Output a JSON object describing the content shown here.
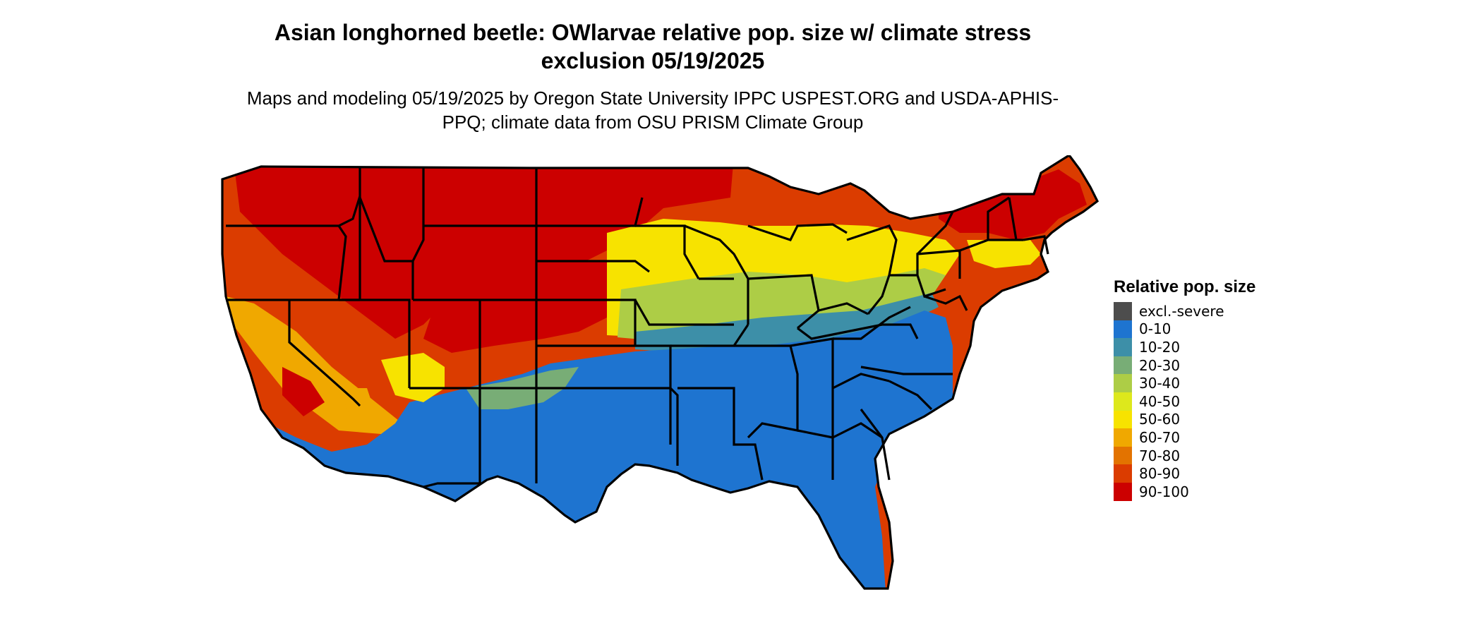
{
  "title": "Asian longhorned beetle: OWlarvae relative pop. size w/ climate stress exclusion 05/19/2025",
  "subtitle": "Maps and modeling 05/19/2025 by Oregon State University IPPC USPEST.ORG and USDA-APHIS-PPQ; climate data from OSU PRISM Climate Group",
  "legend": {
    "title": "Relative pop. size",
    "items": [
      {
        "label": "excl.-severe",
        "color": "#4d4d4d"
      },
      {
        "label": "0-10",
        "color": "#1e74d0"
      },
      {
        "label": "10-20",
        "color": "#3d8fa8"
      },
      {
        "label": "20-30",
        "color": "#78ad76"
      },
      {
        "label": "30-40",
        "color": "#adcd46"
      },
      {
        "label": "40-50",
        "color": "#dde81c"
      },
      {
        "label": "50-60",
        "color": "#f7e300"
      },
      {
        "label": "60-70",
        "color": "#f0a800"
      },
      {
        "label": "70-80",
        "color": "#e37300"
      },
      {
        "label": "80-90",
        "color": "#db3c00"
      },
      {
        "label": "90-100",
        "color": "#cc0000"
      }
    ]
  }
}
